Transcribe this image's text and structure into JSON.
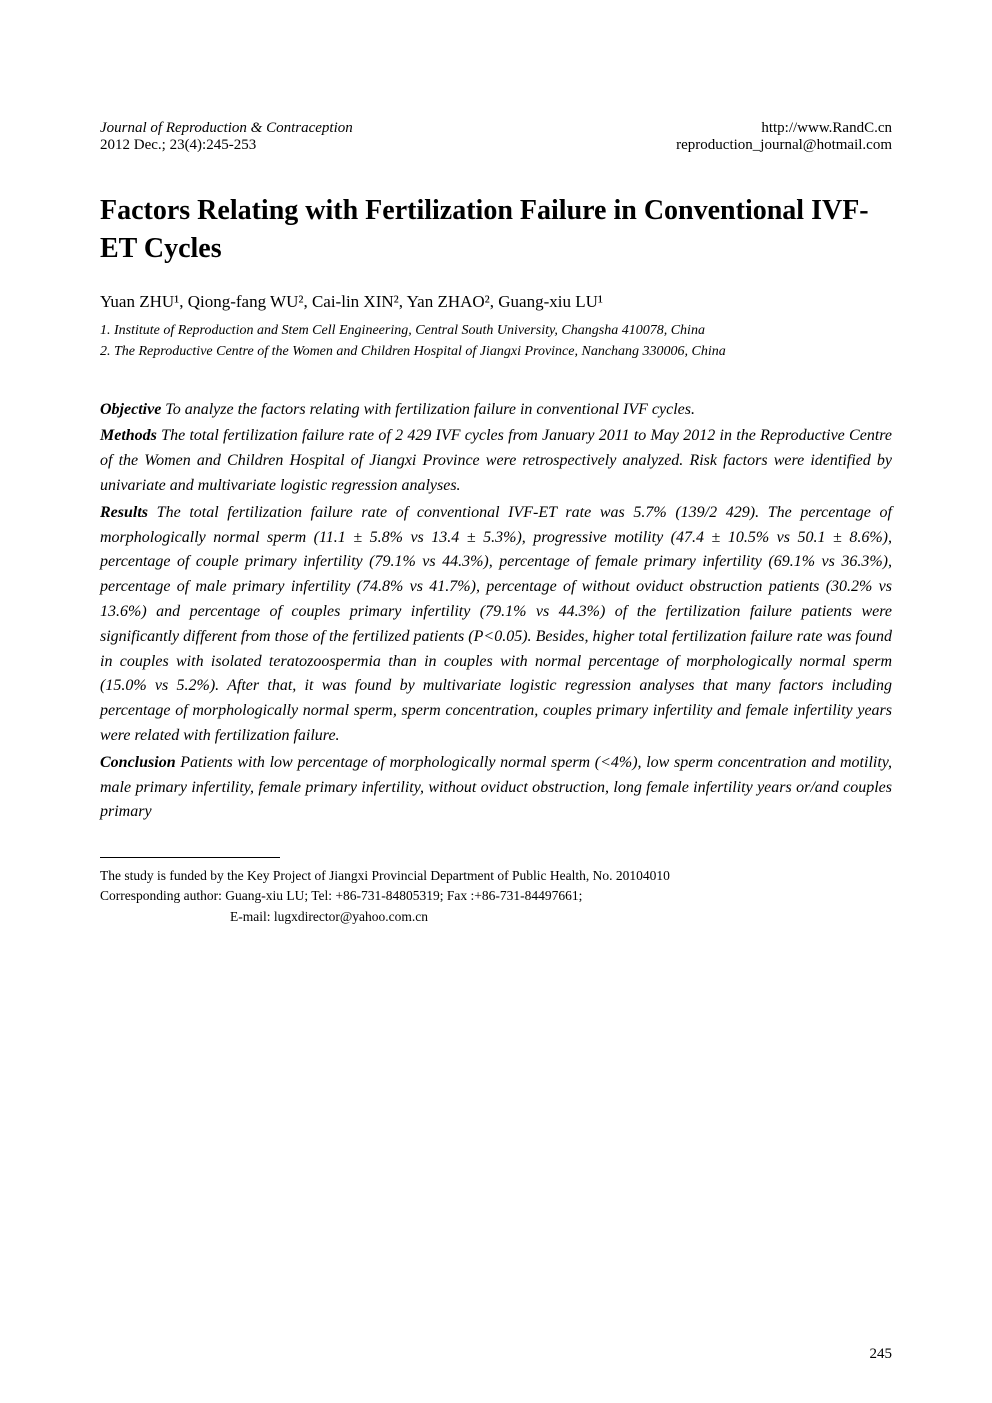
{
  "header": {
    "journal": "Journal of Reproduction & Contraception",
    "issue": "2012 Dec.; 23(4):245-253",
    "url": "http://www.RandC.cn",
    "email": "reproduction_journal@hotmail.com"
  },
  "title": "Factors Relating with Fertilization Failure in Conventional IVF-ET Cycles",
  "authors": {
    "list": "Yuan ZHU¹, Qiong-fang WU², Cai-lin XIN², Yan ZHAO², Guang-xiu LU¹"
  },
  "affiliations": {
    "a1": "1. Institute of Reproduction and Stem Cell Engineering, Central South University, Changsha 410078, China",
    "a2": "2. The Reproductive Centre of the Women and Children Hospital of Jiangxi Province, Nanchang 330006, China"
  },
  "abstract": {
    "objective": {
      "label": "Objective",
      "text": " To analyze the factors relating with fertilization failure in conventional IVF cycles."
    },
    "methods": {
      "label": "Methods",
      "text": " The total fertilization failure rate of 2 429 IVF cycles from January 2011 to May 2012 in the Reproductive Centre of the Women and Children Hospital of Jiangxi Province were retrospectively analyzed. Risk factors were identified by univariate and multivariate logistic regression analyses."
    },
    "results": {
      "label": "Results",
      "text": " The total fertilization failure rate of conventional IVF-ET rate was 5.7% (139/2 429). The percentage of morphologically normal sperm (11.1 ± 5.8% vs 13.4 ± 5.3%), progressive motility (47.4 ± 10.5% vs 50.1 ± 8.6%), percentage of couple primary infertility (79.1% vs 44.3%), percentage of female primary infertility (69.1% vs 36.3%), percentage of male primary infertility (74.8% vs 41.7%), percentage of without oviduct obstruction patients (30.2% vs 13.6%) and percentage of couples primary infertility (79.1% vs 44.3%) of the fertilization failure patients were significantly different from those of the fertilized patients (P<0.05). Besides, higher total fertilization failure rate was found in couples with isolated teratozoospermia than in couples with normal percentage of morphologically normal sperm (15.0% vs 5.2%). After that, it was found by multivariate logistic regression analyses that many factors including percentage of morphologically normal sperm, sperm concentration, couples primary infertility and female infertility years were related with fertilization failure."
    },
    "conclusion": {
      "label": "Conclusion",
      "text": " Patients with low percentage of morphologically normal sperm (<4%), low sperm concentration and motility, male primary infertility, female primary infertility, without oviduct obstruction, long female infertility years or/and couples primary"
    }
  },
  "footnotes": {
    "funding": "The study is funded by the Key Project of Jiangxi Provincial Department of Public Health, No. 20104010",
    "corresponding": "Corresponding author:  Guang-xiu LU; Tel: +86-731-84805319; Fax :+86-731-84497661;",
    "email": "E-mail: lugxdirector@yahoo.com.cn"
  },
  "page_number": "245",
  "styling": {
    "background_color": "#ffffff",
    "text_color": "#000000",
    "title_fontsize": 28,
    "body_fontsize": 16,
    "header_fontsize": 15,
    "affiliation_fontsize": 14,
    "footnote_fontsize": 13.5,
    "font_family": "Times New Roman"
  }
}
